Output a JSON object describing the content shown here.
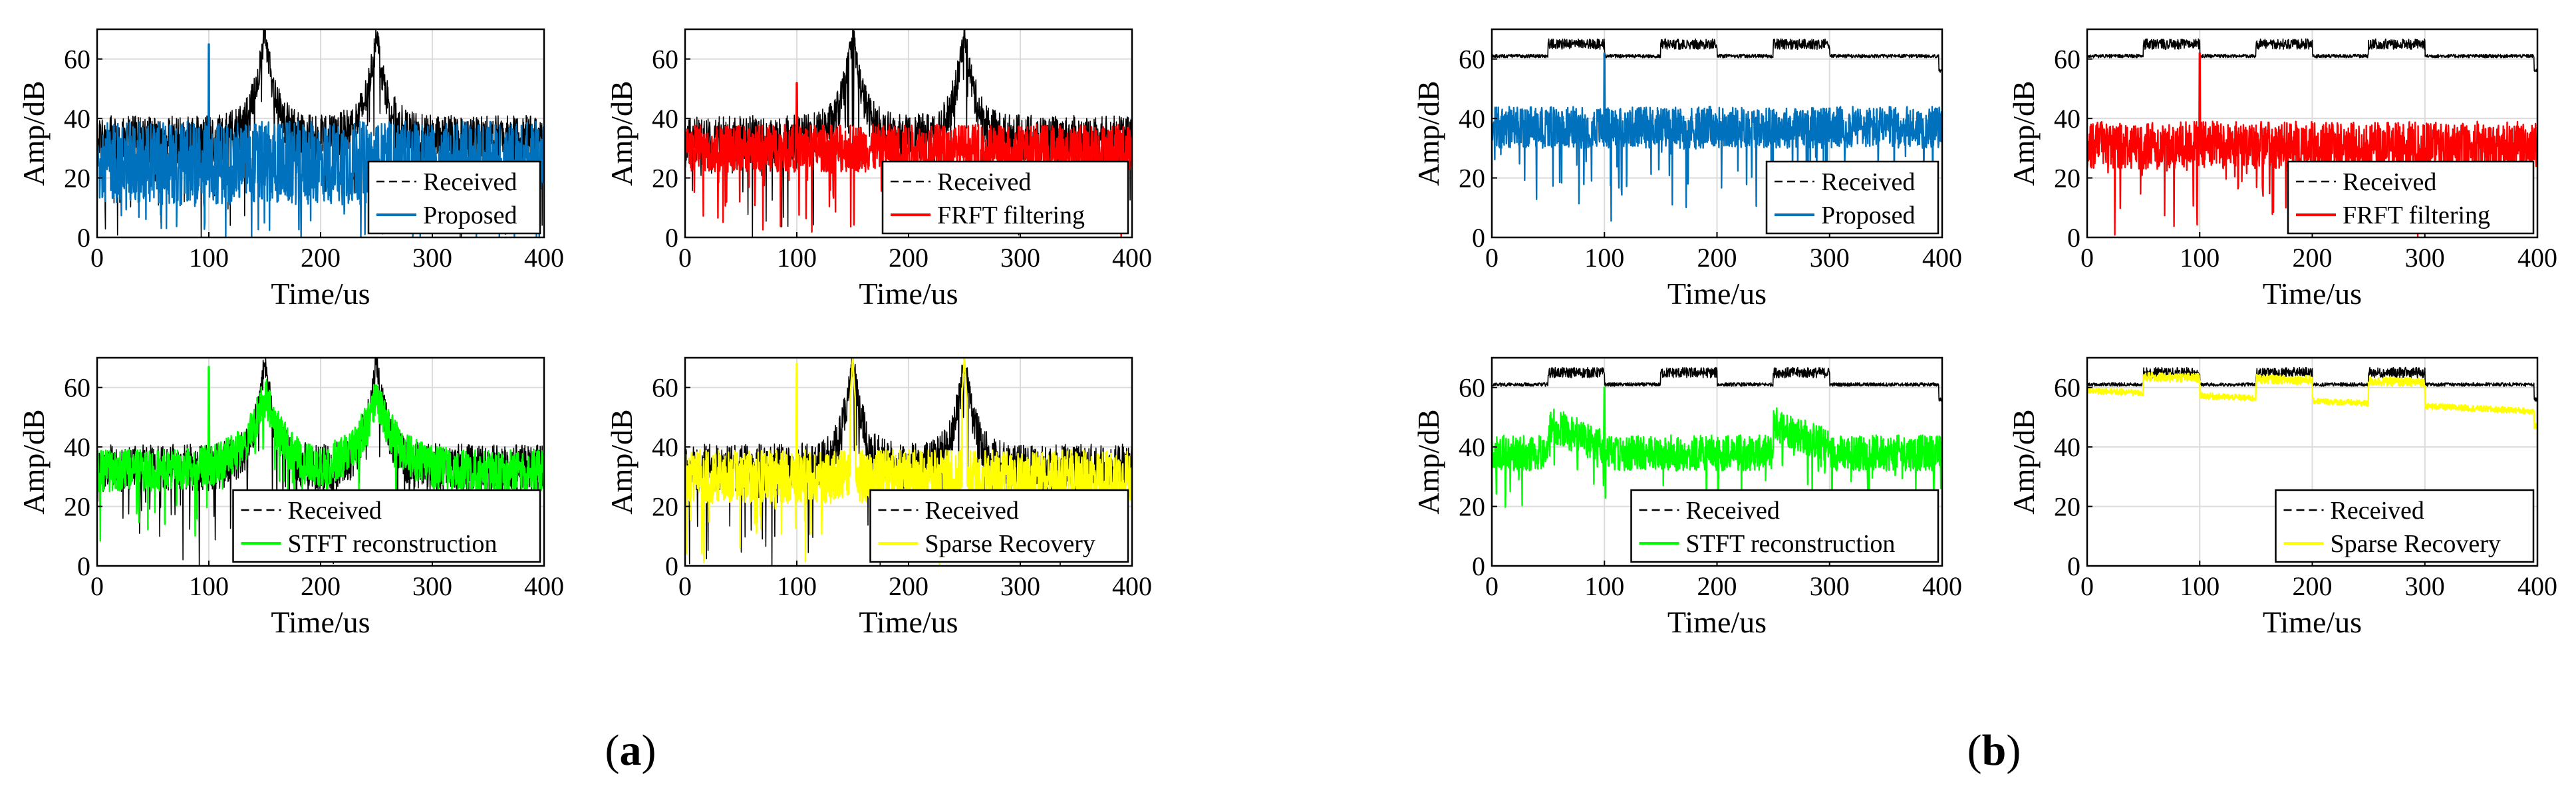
{
  "figure": {
    "label_a": "(a)",
    "label_a_letter": "a",
    "label_b": "(b)",
    "label_b_letter": "b"
  },
  "colors": {
    "received": "#000000",
    "proposed": "#0072BD",
    "frft": "#FF0000",
    "stft": "#00FF00",
    "sparse": "#FFFF00",
    "grid": "#dcdcdc"
  },
  "chart_data": [
    {
      "id": "a1",
      "group": "a",
      "type": "line",
      "xlabel": "Time/us",
      "ylabel": "Amp/dB",
      "xlim": [
        0,
        400
      ],
      "ylim": [
        0,
        70
      ],
      "xticks": [
        0,
        100,
        200,
        300,
        400
      ],
      "yticks": [
        0,
        20,
        40,
        60
      ],
      "grid": true,
      "legend_position": "bottom-right",
      "series": [
        {
          "name": "Received",
          "style": "dashed",
          "color": "#000000",
          "shape": "chirp_peaks",
          "baseline": 33,
          "spread": 8,
          "peaks_x": [
            150,
            250
          ],
          "peak_y": 70
        },
        {
          "name": "Proposed",
          "style": "solid",
          "color": "#0072BD",
          "shape": "noise",
          "baseline": 25,
          "spread": 14,
          "spike_x": 100,
          "spike_y": 65
        }
      ]
    },
    {
      "id": "a2",
      "group": "a",
      "type": "line",
      "xlabel": "Time/us",
      "ylabel": "Amp/dB",
      "xlim": [
        0,
        400
      ],
      "ylim": [
        0,
        70
      ],
      "xticks": [
        0,
        100,
        200,
        300,
        400
      ],
      "yticks": [
        0,
        20,
        40,
        60
      ],
      "grid": true,
      "legend_position": "bottom-right",
      "series": [
        {
          "name": "Received",
          "style": "dashed",
          "color": "#000000",
          "shape": "chirp_peaks",
          "baseline": 33,
          "spread": 8,
          "peaks_x": [
            150,
            250
          ],
          "peak_y": 70
        },
        {
          "name": "FRFT filtering",
          "style": "solid",
          "color": "#FF0000",
          "shape": "noise",
          "baseline": 30,
          "spread": 8,
          "spike_x": 100,
          "spike_y": 52
        }
      ]
    },
    {
      "id": "a3",
      "group": "a",
      "type": "line",
      "xlabel": "Time/us",
      "ylabel": "Amp/dB",
      "xlim": [
        0,
        400
      ],
      "ylim": [
        0,
        70
      ],
      "xticks": [
        0,
        100,
        200,
        300,
        400
      ],
      "yticks": [
        0,
        20,
        40,
        60
      ],
      "grid": true,
      "legend_position": "bottom-right",
      "series": [
        {
          "name": "Received",
          "style": "dashed",
          "color": "#000000",
          "shape": "chirp_peaks",
          "baseline": 33,
          "spread": 8,
          "peaks_x": [
            150,
            250
          ],
          "peak_y": 70
        },
        {
          "name": "STFT reconstruction",
          "style": "solid",
          "color": "#00FF00",
          "shape": "bumps",
          "baseline": 32,
          "spread": 7,
          "peaks_x": [
            150,
            250
          ],
          "peak_y": 58,
          "spike_x": 100,
          "spike_y": 67
        }
      ]
    },
    {
      "id": "a4",
      "group": "a",
      "type": "line",
      "xlabel": "Time/us",
      "ylabel": "Amp/dB",
      "xlim": [
        0,
        400
      ],
      "ylim": [
        0,
        70
      ],
      "xticks": [
        0,
        100,
        200,
        300,
        400
      ],
      "yticks": [
        0,
        20,
        40,
        60
      ],
      "grid": true,
      "legend_position": "bottom-right",
      "series": [
        {
          "name": "Received",
          "style": "dashed",
          "color": "#000000",
          "shape": "chirp_peaks",
          "baseline": 33,
          "spread": 8,
          "peaks_x": [
            150,
            250
          ],
          "peak_y": 70
        },
        {
          "name": "Sparse Recovery",
          "style": "solid",
          "color": "#FFFF00",
          "shape": "noise",
          "baseline": 30,
          "spread": 9,
          "peaks_x": [
            150,
            250
          ],
          "peak_y": 70,
          "spike_x": 100,
          "spike_y": 68
        }
      ]
    },
    {
      "id": "b1",
      "group": "b",
      "type": "line",
      "xlabel": "Time/us",
      "ylabel": "Amp/dB",
      "xlim": [
        0,
        400
      ],
      "ylim": [
        0,
        70
      ],
      "xticks": [
        0,
        100,
        200,
        300,
        400
      ],
      "yticks": [
        0,
        20,
        40,
        60
      ],
      "grid": true,
      "legend_position": "bottom-right",
      "series": [
        {
          "name": "Received",
          "style": "dashed",
          "color": "#000000",
          "shape": "plateaus",
          "baseline": 61,
          "plateau_y": 65,
          "plateaus_x": [
            [
              50,
              100
            ],
            [
              150,
              200
            ],
            [
              250,
              300
            ]
          ]
        },
        {
          "name": "Proposed",
          "style": "solid",
          "color": "#0072BD",
          "shape": "noise",
          "baseline": 37,
          "spread": 7,
          "spike_x": 100,
          "spike_y": 62
        }
      ]
    },
    {
      "id": "b2",
      "group": "b",
      "type": "line",
      "xlabel": "Time/us",
      "ylabel": "Amp/dB",
      "xlim": [
        0,
        400
      ],
      "ylim": [
        0,
        70
      ],
      "xticks": [
        0,
        100,
        200,
        300,
        400
      ],
      "yticks": [
        0,
        20,
        40,
        60
      ],
      "grid": true,
      "legend_position": "bottom-right",
      "series": [
        {
          "name": "Received",
          "style": "dashed",
          "color": "#000000",
          "shape": "plateaus",
          "baseline": 61,
          "plateau_y": 65,
          "plateaus_x": [
            [
              50,
              100
            ],
            [
              150,
              200
            ],
            [
              250,
              300
            ]
          ]
        },
        {
          "name": "FRFT filtering",
          "style": "solid",
          "color": "#FF0000",
          "shape": "noise",
          "baseline": 31,
          "spread": 8,
          "spike_x": 100,
          "spike_y": 62
        }
      ]
    },
    {
      "id": "b3",
      "group": "b",
      "type": "line",
      "xlabel": "Time/us",
      "ylabel": "Amp/dB",
      "xlim": [
        0,
        400
      ],
      "ylim": [
        0,
        70
      ],
      "xticks": [
        0,
        100,
        200,
        300,
        400
      ],
      "yticks": [
        0,
        20,
        40,
        60
      ],
      "grid": true,
      "legend_position": "bottom-right",
      "series": [
        {
          "name": "Received",
          "style": "dashed",
          "color": "#000000",
          "shape": "plateaus",
          "baseline": 61,
          "plateau_y": 65,
          "plateaus_x": [
            [
              50,
              100
            ],
            [
              150,
              200
            ],
            [
              250,
              300
            ]
          ]
        },
        {
          "name": "STFT reconstruction",
          "style": "solid",
          "color": "#00FF00",
          "shape": "bumps_noise",
          "baseline": 38,
          "spread": 6,
          "bumps_x": [
            [
              50,
              100
            ],
            [
              250,
              300
            ]
          ],
          "bump_y": 48,
          "spike_x": 100,
          "spike_y": 60
        }
      ]
    },
    {
      "id": "b4",
      "group": "b",
      "type": "line",
      "xlabel": "Time/us",
      "ylabel": "Amp/dB",
      "xlim": [
        0,
        400
      ],
      "ylim": [
        0,
        70
      ],
      "xticks": [
        0,
        100,
        200,
        300,
        400
      ],
      "yticks": [
        0,
        20,
        40,
        60
      ],
      "grid": true,
      "legend_position": "bottom-right",
      "series": [
        {
          "name": "Received",
          "style": "dashed",
          "color": "#000000",
          "shape": "plateaus",
          "baseline": 61,
          "plateau_y": 65,
          "plateaus_x": [
            [
              50,
              100
            ],
            [
              150,
              200
            ],
            [
              250,
              300
            ]
          ]
        },
        {
          "name": "Sparse Recovery",
          "style": "solid",
          "color": "#FFFF00",
          "shape": "descending_plateaus",
          "start_y": 59,
          "end_y": 52,
          "plateau_y": 64,
          "plateaus_x": [
            [
              50,
              100
            ],
            [
              150,
              200
            ],
            [
              250,
              300
            ]
          ]
        }
      ]
    }
  ]
}
